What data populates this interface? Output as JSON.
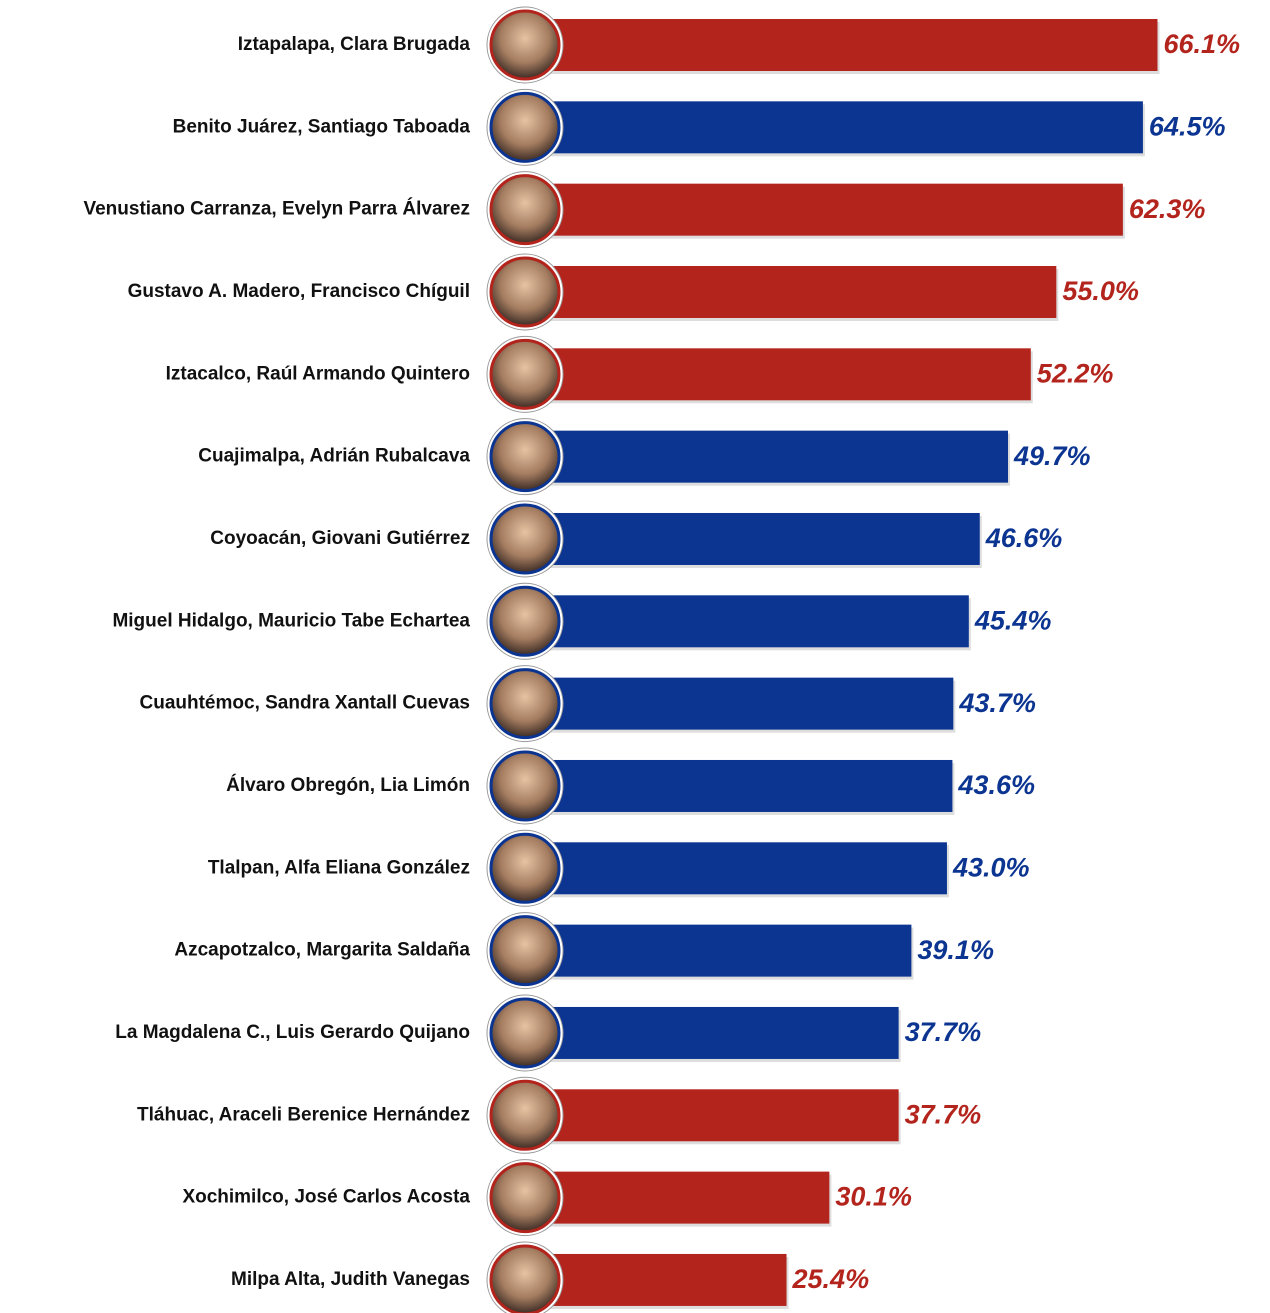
{
  "chart_data": {
    "type": "bar",
    "orientation": "horizontal",
    "categories": [
      "Iztapalapa, Clara Brugada",
      "Benito Juárez, Santiago Taboada",
      "Venustiano Carranza, Evelyn Parra Álvarez",
      "Gustavo A. Madero, Francisco Chíguil",
      "Iztacalco, Raúl Armando Quintero",
      "Cuajimalpa, Adrián Rubalcava",
      "Coyoacán, Giovani Gutiérrez",
      "Miguel Hidalgo, Mauricio Tabe Echartea",
      "Cuauhtémoc, Sandra Xantall Cuevas",
      "Álvaro Obregón, Lia Limón",
      "Tlalpan, Alfa Eliana González",
      "Azcapotzalco, Margarita Saldaña",
      "La Magdalena C., Luis Gerardo Quijano",
      "Tláhuac, Araceli Berenice Hernández",
      "Xochimilco, José Carlos Acosta",
      "Milpa Alta, Judith Vanegas"
    ],
    "values": [
      66.1,
      64.5,
      62.3,
      55.0,
      52.2,
      49.7,
      46.6,
      45.4,
      43.7,
      43.6,
      43.0,
      39.1,
      37.7,
      37.7,
      30.1,
      25.4
    ],
    "value_labels": [
      "66.1%",
      "64.5%",
      "62.3%",
      "55.0%",
      "52.2%",
      "49.7%",
      "46.6%",
      "45.4%",
      "43.7%",
      "43.6%",
      "43.0%",
      "39.1%",
      "37.7%",
      "37.7%",
      "30.1%",
      "25.4%"
    ],
    "colors": [
      "#b3241d",
      "#0c3592",
      "#b3241d",
      "#b3241d",
      "#b3241d",
      "#0c3592",
      "#0c3592",
      "#0c3592",
      "#0c3592",
      "#0c3592",
      "#0c3592",
      "#0c3592",
      "#0c3592",
      "#b3241d",
      "#b3241d",
      "#b3241d"
    ]
  }
}
